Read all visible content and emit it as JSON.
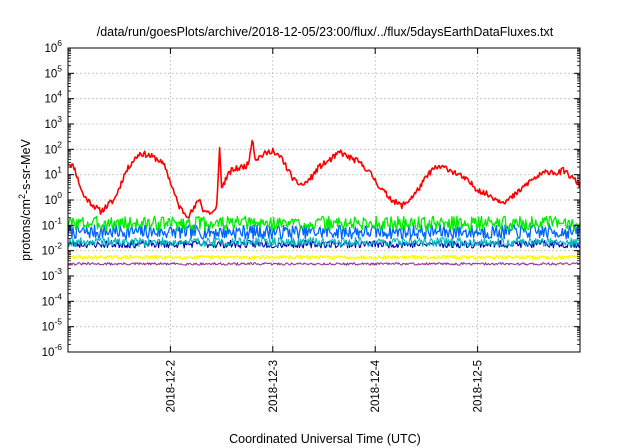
{
  "chart_data": {
    "type": "line",
    "title": "/data/run/goesPlots/archive/2018-12-05/23:00/flux/../flux/5daysEarthDataFluxes.txt",
    "xlabel": "Coordinated Universal Time (UTC)",
    "ylabel_prefix": "protons/cm",
    "ylabel_exp": "2",
    "ylabel_suffix": "-s-sr-MeV",
    "yscale": "log",
    "ylim": [
      1e-06,
      1000000.0
    ],
    "xlim": [
      0,
      5
    ],
    "y_ticks": [
      {
        "exp": -6,
        "label_base": "10",
        "label_exp": "-6"
      },
      {
        "exp": -5,
        "label_base": "10",
        "label_exp": "-5"
      },
      {
        "exp": -4,
        "label_base": "10",
        "label_exp": "-4"
      },
      {
        "exp": -3,
        "label_base": "10",
        "label_exp": "-3"
      },
      {
        "exp": -2,
        "label_base": "10",
        "label_exp": "-2"
      },
      {
        "exp": -1,
        "label_base": "10",
        "label_exp": "-1"
      },
      {
        "exp": 0,
        "label_base": "10",
        "label_exp": "0"
      },
      {
        "exp": 1,
        "label_base": "10",
        "label_exp": "1"
      },
      {
        "exp": 2,
        "label_base": "10",
        "label_exp": "2"
      },
      {
        "exp": 3,
        "label_base": "10",
        "label_exp": "3"
      },
      {
        "exp": 4,
        "label_base": "10",
        "label_exp": "4"
      },
      {
        "exp": 5,
        "label_base": "10",
        "label_exp": "5"
      },
      {
        "exp": 6,
        "label_base": "10",
        "label_exp": "6"
      }
    ],
    "x_ticks": [
      {
        "x": 1,
        "label": "2018-12-2"
      },
      {
        "x": 2,
        "label": "2018-12-3"
      },
      {
        "x": 3,
        "label": "2018-12-4"
      },
      {
        "x": 4,
        "label": "2018-12-5"
      }
    ],
    "grid": true,
    "series": [
      {
        "color": "#ff0000",
        "width": 1.6,
        "anchors": [
          [
            0.0,
            30
          ],
          [
            0.06,
            20
          ],
          [
            0.1,
            6
          ],
          [
            0.15,
            1.5
          ],
          [
            0.25,
            0.6
          ],
          [
            0.32,
            0.35
          ],
          [
            0.4,
            0.7
          ],
          [
            0.45,
            1.0
          ],
          [
            0.5,
            3
          ],
          [
            0.55,
            10
          ],
          [
            0.62,
            30
          ],
          [
            0.7,
            70
          ],
          [
            0.78,
            60
          ],
          [
            0.88,
            40
          ],
          [
            0.95,
            20
          ],
          [
            1.02,
            3
          ],
          [
            1.08,
            0.6
          ],
          [
            1.14,
            0.3
          ],
          [
            1.18,
            0.25
          ],
          [
            1.24,
            0.5
          ],
          [
            1.28,
            1.2
          ],
          [
            1.32,
            0.4
          ],
          [
            1.4,
            0.3
          ],
          [
            1.45,
            0.4
          ],
          [
            1.48,
            120
          ],
          [
            1.5,
            3
          ],
          [
            1.55,
            8
          ],
          [
            1.6,
            15
          ],
          [
            1.7,
            20
          ],
          [
            1.76,
            25
          ],
          [
            1.8,
            300
          ],
          [
            1.83,
            40
          ],
          [
            1.9,
            60
          ],
          [
            1.97,
            80
          ],
          [
            2.0,
            100
          ],
          [
            2.02,
            60
          ],
          [
            2.08,
            50
          ],
          [
            2.15,
            15
          ],
          [
            2.22,
            5
          ],
          [
            2.3,
            4
          ],
          [
            2.38,
            8
          ],
          [
            2.45,
            20
          ],
          [
            2.52,
            30
          ],
          [
            2.6,
            50
          ],
          [
            2.66,
            80
          ],
          [
            2.7,
            60
          ],
          [
            2.76,
            45
          ],
          [
            2.82,
            35
          ],
          [
            2.9,
            20
          ],
          [
            2.98,
            8
          ],
          [
            3.05,
            3
          ],
          [
            3.12,
            1.5
          ],
          [
            3.2,
            0.8
          ],
          [
            3.26,
            0.6
          ],
          [
            3.32,
            0.9
          ],
          [
            3.4,
            2
          ],
          [
            3.48,
            6
          ],
          [
            3.55,
            15
          ],
          [
            3.62,
            20
          ],
          [
            3.7,
            18
          ],
          [
            3.78,
            12
          ],
          [
            3.85,
            8
          ],
          [
            3.92,
            5
          ],
          [
            3.98,
            3
          ],
          [
            4.05,
            2
          ],
          [
            4.12,
            1.5
          ],
          [
            4.2,
            1
          ],
          [
            4.28,
            0.9
          ],
          [
            4.36,
            1.5
          ],
          [
            4.44,
            3
          ],
          [
            4.52,
            6
          ],
          [
            4.6,
            9
          ],
          [
            4.66,
            12
          ],
          [
            4.72,
            14
          ],
          [
            4.78,
            11
          ],
          [
            4.84,
            15
          ],
          [
            4.9,
            9
          ],
          [
            4.95,
            6
          ],
          [
            5.0,
            4
          ]
        ],
        "noise": 0.12,
        "seed": 11
      },
      {
        "color": "#00ee00",
        "width": 1.3,
        "center": 0.12,
        "noise": 0.28,
        "seed": 3
      },
      {
        "color": "#0066ff",
        "width": 1.3,
        "center": 0.055,
        "noise": 0.28,
        "seed": 7
      },
      {
        "color": "#00bbbb",
        "width": 1.1,
        "center": 0.022,
        "noise": 0.18,
        "seed": 19
      },
      {
        "color": "#0000bb",
        "width": 1.1,
        "center": 0.018,
        "noise": 0.15,
        "seed": 23
      },
      {
        "color": "#ffff00",
        "width": 1.6,
        "center": 0.0055,
        "noise": 0.06,
        "seed": 29
      },
      {
        "color": "#993399",
        "width": 1.1,
        "center": 0.003,
        "noise": 0.05,
        "seed": 31
      }
    ]
  }
}
